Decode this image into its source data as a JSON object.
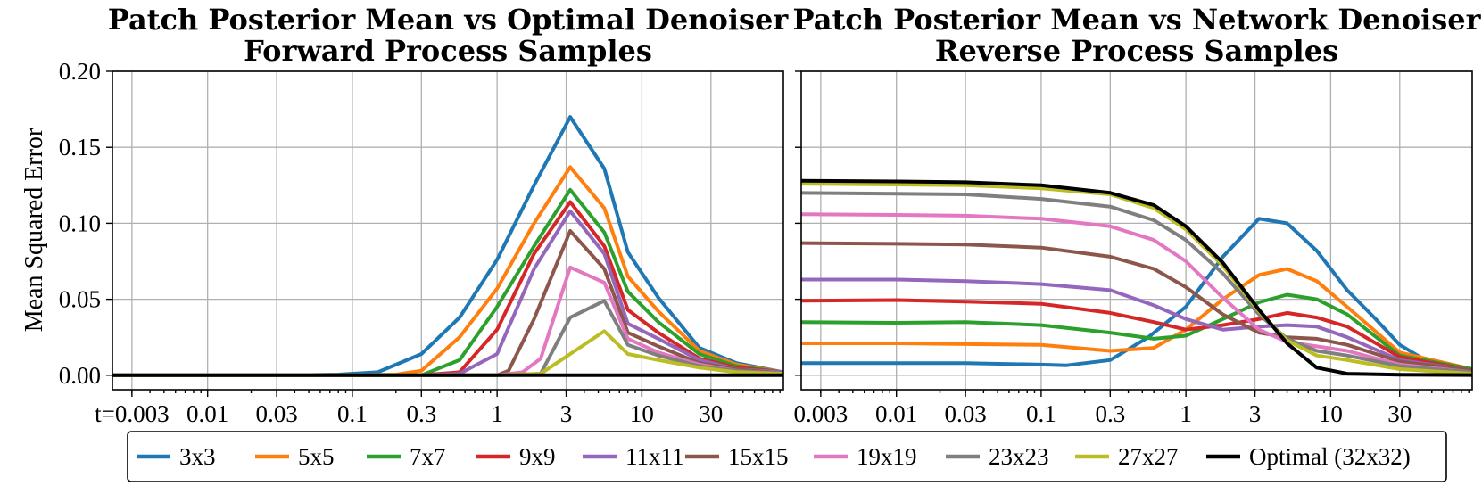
{
  "chart_data": {
    "type": "line",
    "ylabel": "Mean Squared Error",
    "ylim": [
      0,
      0.2
    ],
    "yticks": [
      0.0,
      0.05,
      0.1,
      0.15,
      0.2
    ],
    "ytick_labels": [
      "0.00",
      "0.05",
      "0.10",
      "0.15",
      "0.20"
    ],
    "xscale": "log",
    "xlim": [
      0.0022,
      95
    ],
    "xticks": [
      0.003,
      0.01,
      0.03,
      0.1,
      0.3,
      1,
      3,
      10,
      30
    ],
    "xtick_labels_left": [
      "t=0.003",
      "0.01",
      "0.03",
      "0.1",
      "0.3",
      "1",
      "3",
      "10",
      "30"
    ],
    "xtick_labels_right": [
      "0.003",
      "0.01",
      "0.03",
      "0.1",
      "0.3",
      "1",
      "3",
      "10",
      "30"
    ],
    "grid": true,
    "legend_position": "bottom-center",
    "legend": [
      {
        "name": "3x3",
        "color": "#1f77b4"
      },
      {
        "name": "5x5",
        "color": "#ff7f0e"
      },
      {
        "name": "7x7",
        "color": "#2ca02c"
      },
      {
        "name": "9x9",
        "color": "#d62728"
      },
      {
        "name": "11x11",
        "color": "#9467bd"
      },
      {
        "name": "15x15",
        "color": "#8c564b"
      },
      {
        "name": "19x19",
        "color": "#e377c2"
      },
      {
        "name": "23x23",
        "color": "#7f7f7f"
      },
      {
        "name": "27x27",
        "color": "#bcbd22"
      },
      {
        "name": "Optimal (32x32)",
        "color": "#000000"
      }
    ],
    "panels": [
      {
        "title_line1": "Patch Posterior Mean vs Optimal Denoiser",
        "title_line2": "Forward Process Samples",
        "series": [
          {
            "name": "3x3",
            "x": [
              0.002,
              0.0035,
              0.006,
              0.01,
              0.02,
              0.04,
              0.08,
              0.15,
              0.3,
              0.55,
              1.0,
              1.8,
              3.2,
              5.5,
              8,
              13,
              25,
              45,
              95
            ],
            "y": [
              0,
              0,
              0,
              0,
              0,
              0,
              0.0005,
              0.002,
              0.014,
              0.038,
              0.076,
              0.125,
              0.17,
              0.136,
              0.081,
              0.051,
              0.018,
              0.008,
              0.002
            ]
          },
          {
            "name": "5x5",
            "x": [
              0.002,
              0.01,
              0.1,
              0.2,
              0.3,
              0.55,
              1.0,
              1.8,
              3.2,
              5.5,
              8,
              13,
              25,
              45,
              95
            ],
            "y": [
              0,
              0,
              0,
              0.0005,
              0.003,
              0.025,
              0.057,
              0.1,
              0.137,
              0.11,
              0.065,
              0.042,
              0.016,
              0.007,
              0.002
            ]
          },
          {
            "name": "7x7",
            "x": [
              0.002,
              0.01,
              0.1,
              0.3,
              0.55,
              1.0,
              1.8,
              3.2,
              5.5,
              8,
              13,
              25,
              45,
              95
            ],
            "y": [
              0,
              0,
              0,
              0,
              0.01,
              0.045,
              0.085,
              0.122,
              0.094,
              0.055,
              0.035,
              0.014,
              0.006,
              0.002
            ]
          },
          {
            "name": "9x9",
            "x": [
              0.002,
              0.01,
              0.1,
              0.3,
              0.55,
              1.0,
              1.8,
              3.2,
              5.5,
              8,
              13,
              25,
              45,
              95
            ],
            "y": [
              0,
              0,
              0,
              0,
              0.002,
              0.03,
              0.08,
              0.114,
              0.085,
              0.043,
              0.028,
              0.011,
              0.005,
              0.002
            ]
          },
          {
            "name": "11x11",
            "x": [
              0.002,
              0.01,
              0.1,
              0.3,
              0.55,
              1.0,
              1.8,
              3.2,
              5.5,
              8,
              13,
              25,
              45,
              95
            ],
            "y": [
              0,
              0,
              0,
              0,
              0.001,
              0.014,
              0.07,
              0.108,
              0.08,
              0.034,
              0.024,
              0.01,
              0.004,
              0.002
            ]
          },
          {
            "name": "15x15",
            "x": [
              0.002,
              0.01,
              0.1,
              0.3,
              1.0,
              1.2,
              1.8,
              3.2,
              5.5,
              8,
              13,
              25,
              45,
              95
            ],
            "y": [
              0,
              0,
              0,
              0,
              0,
              0.003,
              0.037,
              0.095,
              0.07,
              0.028,
              0.019,
              0.008,
              0.004,
              0.001
            ]
          },
          {
            "name": "19x19",
            "x": [
              0.002,
              0.01,
              0.1,
              0.3,
              1.0,
              1.5,
              2.0,
              3.2,
              5.5,
              8,
              13,
              25,
              45,
              95
            ],
            "y": [
              0,
              0,
              0,
              0,
              0,
              0.002,
              0.011,
              0.071,
              0.061,
              0.024,
              0.015,
              0.007,
              0.003,
              0.001
            ]
          },
          {
            "name": "23x23",
            "x": [
              0.002,
              0.01,
              0.1,
              0.3,
              1.0,
              2.0,
              3.2,
              5.5,
              8,
              13,
              25,
              45,
              95
            ],
            "y": [
              0,
              0,
              0,
              0,
              0,
              0.001,
              0.038,
              0.049,
              0.02,
              0.013,
              0.006,
              0.003,
              0.001
            ]
          },
          {
            "name": "27x27",
            "x": [
              0.002,
              0.01,
              0.1,
              0.3,
              1.0,
              2.0,
              3.2,
              5.5,
              8,
              13,
              25,
              45,
              95
            ],
            "y": [
              0,
              0,
              0,
              0,
              0,
              0.001,
              0.014,
              0.029,
              0.014,
              0.01,
              0.005,
              0.002,
              0.001
            ]
          },
          {
            "name": "Optimal (32x32)",
            "x": [
              0.002,
              95
            ],
            "y": [
              0,
              0
            ]
          }
        ]
      },
      {
        "title_line1": "Patch Posterior Mean vs Network Denoiser",
        "title_line2": "Reverse Process Samples",
        "series": [
          {
            "name": "3x3",
            "x": [
              0.002,
              0.005,
              0.01,
              0.03,
              0.1,
              0.15,
              0.3,
              0.55,
              1.0,
              1.8,
              3.2,
              5.0,
              8,
              13,
              20,
              30,
              45,
              95
            ],
            "y": [
              0.008,
              0.008,
              0.008,
              0.008,
              0.007,
              0.0065,
              0.01,
              0.025,
              0.045,
              0.078,
              0.103,
              0.1,
              0.082,
              0.056,
              0.038,
              0.02,
              0.01,
              0.004
            ]
          },
          {
            "name": "5x5",
            "x": [
              0.002,
              0.01,
              0.03,
              0.1,
              0.3,
              0.6,
              1.0,
              1.8,
              3.2,
              5.0,
              8,
              13,
              30,
              95
            ],
            "y": [
              0.021,
              0.021,
              0.0205,
              0.02,
              0.016,
              0.018,
              0.03,
              0.05,
              0.066,
              0.07,
              0.062,
              0.045,
              0.015,
              0.004
            ]
          },
          {
            "name": "7x7",
            "x": [
              0.002,
              0.01,
              0.03,
              0.1,
              0.3,
              0.6,
              1.0,
              1.8,
              3.2,
              5.0,
              8,
              13,
              30,
              95
            ],
            "y": [
              0.035,
              0.0345,
              0.035,
              0.033,
              0.028,
              0.024,
              0.026,
              0.037,
              0.048,
              0.053,
              0.05,
              0.04,
              0.013,
              0.004
            ]
          },
          {
            "name": "9x9",
            "x": [
              0.002,
              0.01,
              0.03,
              0.1,
              0.3,
              0.6,
              1.0,
              1.8,
              3.2,
              5.0,
              8,
              13,
              30,
              95
            ],
            "y": [
              0.049,
              0.0495,
              0.0485,
              0.047,
              0.041,
              0.035,
              0.03,
              0.033,
              0.037,
              0.041,
              0.038,
              0.032,
              0.012,
              0.003
            ]
          },
          {
            "name": "11x11",
            "x": [
              0.002,
              0.01,
              0.03,
              0.1,
              0.3,
              0.6,
              1.0,
              1.8,
              3.2,
              5.0,
              8,
              13,
              30,
              95
            ],
            "y": [
              0.063,
              0.063,
              0.062,
              0.06,
              0.056,
              0.046,
              0.037,
              0.03,
              0.032,
              0.033,
              0.032,
              0.025,
              0.01,
              0.003
            ]
          },
          {
            "name": "15x15",
            "x": [
              0.002,
              0.01,
              0.03,
              0.1,
              0.3,
              0.6,
              1.0,
              1.8,
              3.2,
              5.0,
              8,
              13,
              30,
              95
            ],
            "y": [
              0.087,
              0.0865,
              0.086,
              0.084,
              0.078,
              0.07,
              0.058,
              0.04,
              0.028,
              0.025,
              0.024,
              0.02,
              0.009,
              0.003
            ]
          },
          {
            "name": "19x19",
            "x": [
              0.002,
              0.01,
              0.03,
              0.1,
              0.3,
              0.6,
              1.0,
              1.8,
              3.2,
              5.0,
              8,
              13,
              30,
              95
            ],
            "y": [
              0.106,
              0.1055,
              0.105,
              0.103,
              0.098,
              0.089,
              0.075,
              0.051,
              0.03,
              0.022,
              0.019,
              0.016,
              0.007,
              0.002
            ]
          },
          {
            "name": "23x23",
            "x": [
              0.002,
              0.01,
              0.03,
              0.1,
              0.3,
              0.6,
              1.0,
              1.8,
              3.2,
              5.0,
              8,
              13,
              30,
              95
            ],
            "y": [
              0.12,
              0.1195,
              0.119,
              0.116,
              0.111,
              0.102,
              0.089,
              0.067,
              0.04,
              0.024,
              0.016,
              0.013,
              0.006,
              0.002
            ]
          },
          {
            "name": "27x27",
            "x": [
              0.002,
              0.01,
              0.03,
              0.1,
              0.3,
              0.6,
              1.0,
              1.8,
              3.2,
              5.0,
              8,
              13,
              30,
              95
            ],
            "y": [
              0.126,
              0.1255,
              0.125,
              0.123,
              0.119,
              0.11,
              0.096,
              0.072,
              0.042,
              0.023,
              0.013,
              0.01,
              0.004,
              0.001
            ]
          },
          {
            "name": "Optimal (32x32)",
            "x": [
              0.002,
              0.01,
              0.03,
              0.1,
              0.3,
              0.6,
              1.0,
              1.8,
              3.2,
              5.0,
              8,
              13,
              30,
              95
            ],
            "y": [
              0.128,
              0.1275,
              0.127,
              0.125,
              0.12,
              0.112,
              0.098,
              0.074,
              0.043,
              0.021,
              0.005,
              0.001,
              0.0003,
              0.0001
            ]
          }
        ]
      }
    ]
  }
}
